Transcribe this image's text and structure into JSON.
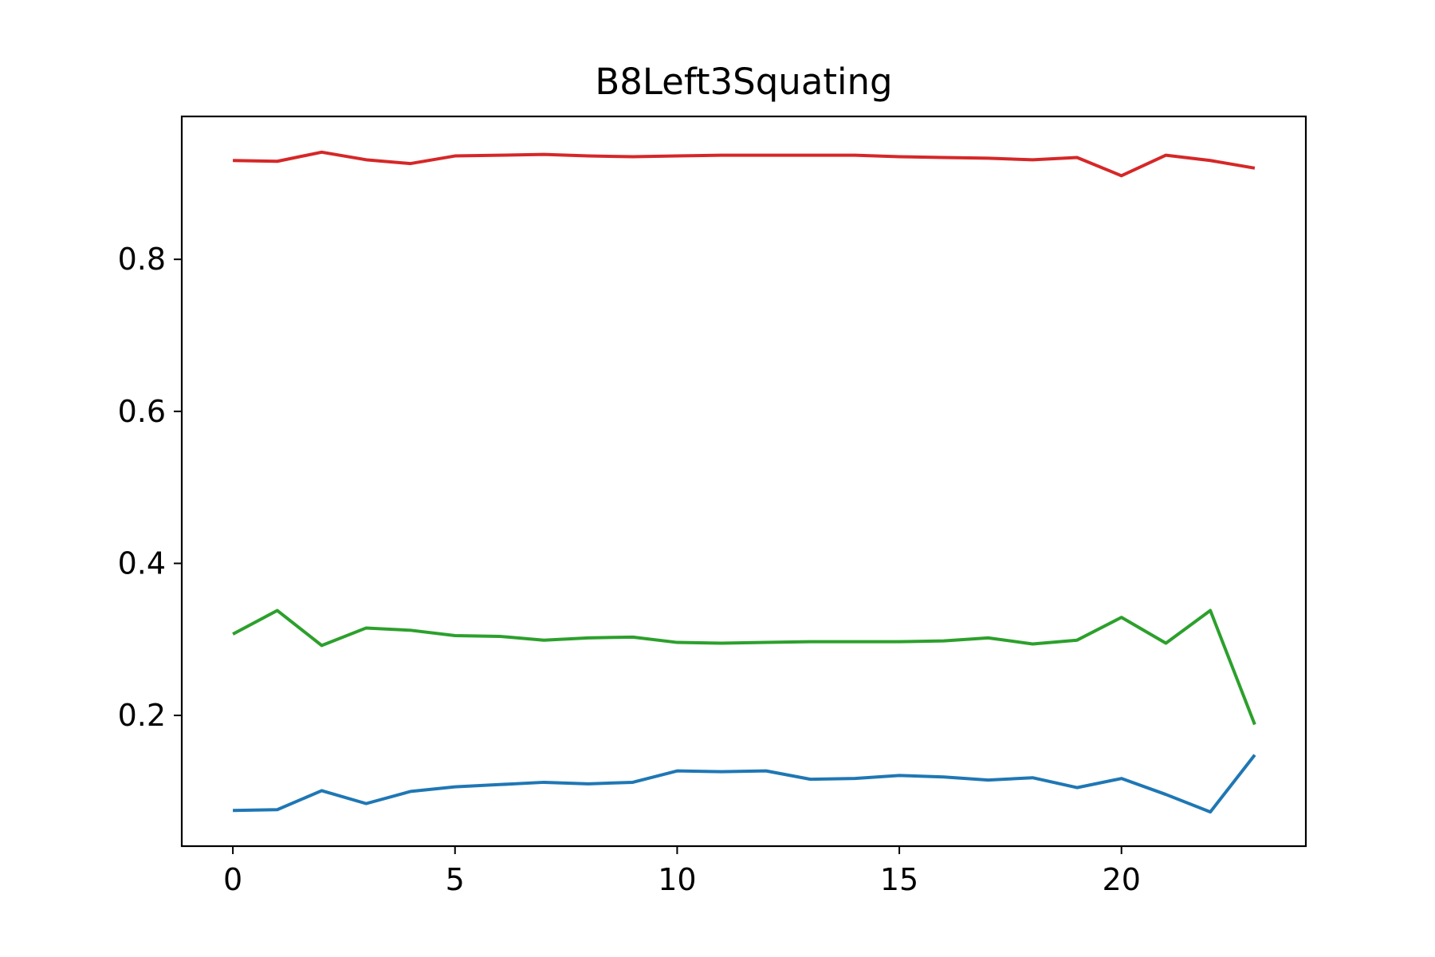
{
  "chart_data": {
    "type": "line",
    "title": "B8Left3Squating",
    "xlabel": "",
    "ylabel": "",
    "x": [
      0,
      1,
      2,
      3,
      4,
      5,
      6,
      7,
      8,
      9,
      10,
      11,
      12,
      13,
      14,
      15,
      16,
      17,
      18,
      19,
      20,
      21,
      22,
      23
    ],
    "xlim": [
      -1.15,
      24.15
    ],
    "ylim": [
      0.028,
      0.988
    ],
    "xticks": [
      0,
      5,
      10,
      15,
      20
    ],
    "yticks": [
      0.2,
      0.4,
      0.6,
      0.8
    ],
    "xtick_labels": [
      "0",
      "5",
      "10",
      "15",
      "20"
    ],
    "ytick_labels": [
      "0.2",
      "0.4",
      "0.6",
      "0.8"
    ],
    "grid": false,
    "legend": null,
    "series": [
      {
        "color": "#1f77b4",
        "values": [
          0.075,
          0.076,
          0.101,
          0.084,
          0.1,
          0.106,
          0.109,
          0.112,
          0.11,
          0.112,
          0.127,
          0.126,
          0.127,
          0.116,
          0.117,
          0.121,
          0.119,
          0.115,
          0.118,
          0.105,
          0.117,
          0.096,
          0.073,
          0.148
        ]
      },
      {
        "color": "#2ca02c",
        "values": [
          0.307,
          0.338,
          0.292,
          0.315,
          0.312,
          0.305,
          0.304,
          0.299,
          0.302,
          0.303,
          0.296,
          0.295,
          0.296,
          0.297,
          0.297,
          0.297,
          0.298,
          0.302,
          0.294,
          0.299,
          0.329,
          0.295,
          0.338,
          0.188
        ]
      },
      {
        "color": "#d62728",
        "values": [
          0.93,
          0.929,
          0.941,
          0.931,
          0.926,
          0.936,
          0.937,
          0.938,
          0.936,
          0.935,
          0.936,
          0.937,
          0.937,
          0.937,
          0.937,
          0.935,
          0.934,
          0.933,
          0.931,
          0.934,
          0.91,
          0.937,
          0.93,
          0.92
        ]
      }
    ]
  }
}
